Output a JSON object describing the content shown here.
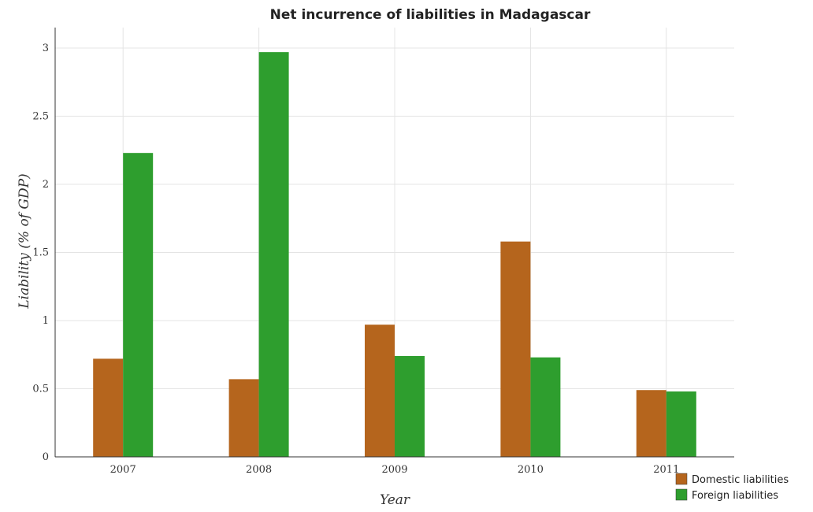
{
  "title": "Net incurrence of liabilities in Madagascar",
  "chart_data": {
    "type": "bar",
    "title": "Net incurrence of liabilities in Madagascar",
    "xlabel": "Year",
    "ylabel": "Liability (% of GDP)",
    "categories": [
      "2007",
      "2008",
      "2009",
      "2010",
      "2011"
    ],
    "series": [
      {
        "name": "Domestic liabilities",
        "color": "#b5651d",
        "values": [
          0.72,
          0.57,
          0.97,
          1.58,
          0.49
        ]
      },
      {
        "name": "Foreign liabilities",
        "color": "#2e9e2e",
        "values": [
          2.23,
          2.97,
          0.74,
          0.73,
          0.48
        ]
      }
    ],
    "yticks": [
      0,
      0.5,
      1,
      1.5,
      2,
      2.5,
      3
    ],
    "yticklabels": [
      "0",
      "0.5",
      "1",
      "1.5",
      "2",
      "2.5",
      "3"
    ],
    "ylim": [
      0,
      3.15
    ],
    "grid": true,
    "legend_position": "bottom-right"
  }
}
